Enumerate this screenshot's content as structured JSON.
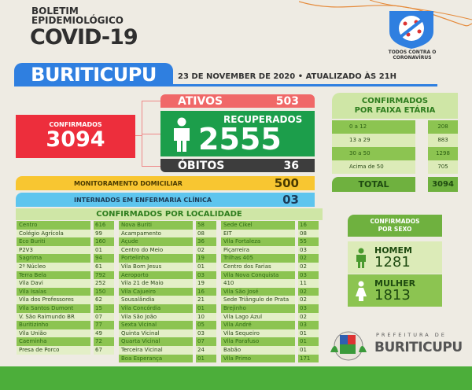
{
  "header": {
    "line1": "BOLETIM",
    "line2": "EPIDEMIOLÓGICO",
    "line3": "COVID-19",
    "city": "BURITICUPU",
    "date": "23 DE NOVEMBER DE 2020 • ATUALIZADO ÀS 21H",
    "campaign": "TODOS CONTRA O CORONAVÍRUS"
  },
  "summary": {
    "confirmados_label": "CONFIRMADOS",
    "confirmados": "3094",
    "ativos_label": "ATIVOS",
    "ativos": "503",
    "recuperados_label": "RECUPERADOS",
    "recuperados": "2555",
    "obitos_label": "ÓBITOS",
    "obitos": "36",
    "monitoramento_label": "MONITORAMENTO DOMICILIAR",
    "monitoramento": "500",
    "internados_label": "INTERNADOS EM ENFERMARIA CLÍNICA",
    "internados": "03"
  },
  "colors": {
    "confirmados": "#ed2e3c",
    "ativos": "#f06868",
    "recuperados": "#1c9e4b",
    "obitos": "#3d3d3d",
    "monitoramento": "#f8c631",
    "internados": "#5ec5ee",
    "brand_blue": "#2f7fe0",
    "green": "#4cae3a"
  },
  "localidade": {
    "title": "CONFIRMADOS POR LOCALIDADE",
    "columns": [
      [
        [
          "Centro",
          "616"
        ],
        [
          "Colégio Agrícola",
          "99"
        ],
        [
          "Eco Buriti",
          "160"
        ],
        [
          "P2V3",
          "01"
        ],
        [
          "Sagrima",
          "94"
        ],
        [
          "2º Núcleo",
          "61"
        ],
        [
          "Terra Bela",
          "792"
        ],
        [
          "Vila Davi",
          "252"
        ],
        [
          "Vila Isaías",
          "150"
        ],
        [
          "Vila dos Professores",
          "62"
        ],
        [
          "Vila Santos Dumont",
          "15"
        ],
        [
          "V. São Raimundo BR",
          "07"
        ],
        [
          "Buritizinho",
          "77"
        ],
        [
          "Vila União",
          "49"
        ],
        [
          "Caeminha",
          "72"
        ],
        [
          "Presa de Porco",
          "67"
        ]
      ],
      [
        [
          "Nova Buriti",
          "58"
        ],
        [
          "Acampamento",
          "08"
        ],
        [
          "Açude",
          "36"
        ],
        [
          "Centro do Meio",
          "02"
        ],
        [
          "Portelinha",
          "19"
        ],
        [
          "Vila Bom Jesus",
          "01"
        ],
        [
          "Aeroporto",
          "03"
        ],
        [
          "Vila 21 de Maio",
          "19"
        ],
        [
          "Vila Cajueiro",
          "16"
        ],
        [
          "Sousalândia",
          "21"
        ],
        [
          "Vila Concórdia",
          "01"
        ],
        [
          "Vila São João",
          "10"
        ],
        [
          "Sexta Vicinal",
          "05"
        ],
        [
          "Quinta Vicinal",
          "03"
        ],
        [
          "Quarta Vicinal",
          "07"
        ],
        [
          "Terceira Vicinal",
          "24"
        ],
        [
          "Boa Esperança",
          "01"
        ]
      ],
      [
        [
          "Sede Cikel",
          "16"
        ],
        [
          "EIT",
          "08"
        ],
        [
          "Vila Fortaleza",
          "55"
        ],
        [
          "Piçarreira",
          "03"
        ],
        [
          "Trilhas 405",
          "02"
        ],
        [
          "Centro dos Farias",
          "02"
        ],
        [
          "Vila Nova Conquista",
          "03"
        ],
        [
          "410",
          "11"
        ],
        [
          "Vila São José",
          "02"
        ],
        [
          "Sede Triângulo de Prata",
          "02"
        ],
        [
          "Brejinho",
          "03"
        ],
        [
          "Vila Lago Azul",
          "02"
        ],
        [
          "Vila André",
          "03"
        ],
        [
          "Vila Sequeiro",
          "01"
        ],
        [
          "Vila Parafuso",
          "01"
        ],
        [
          "Babão",
          "01"
        ],
        [
          "Vila Primo",
          "171"
        ]
      ]
    ]
  },
  "faixa_etaria": {
    "title1": "CONFIRMADOS",
    "title2": "POR FAIXA ETÁRIA",
    "rows": [
      [
        "0 a 12",
        "208"
      ],
      [
        "13 a 29",
        "883"
      ],
      [
        "30 a 50",
        "1298"
      ],
      [
        "Acima de 50",
        "705"
      ]
    ],
    "total_label": "TOTAL",
    "total": "3094"
  },
  "sexo": {
    "title1": "CONFIRMADOS",
    "title2": "POR SEXO",
    "homem_label": "HOMEM",
    "homem": "1281",
    "mulher_label": "MULHER",
    "mulher": "1813"
  },
  "footer": {
    "pref_label": "PREFEITURA DE",
    "pref_name": "BURITICUPU"
  }
}
